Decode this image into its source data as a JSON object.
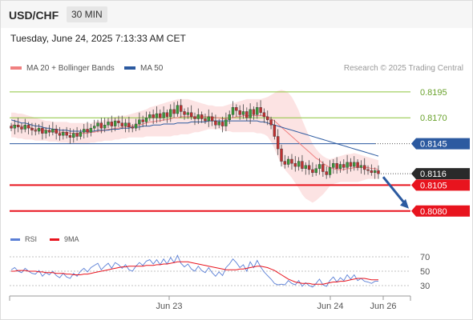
{
  "header": {
    "symbol": "USD/CHF",
    "timeframe": "30 MIN",
    "datetime": "Tuesday, June 24, 2025 7:13:33 AM CET"
  },
  "legend": {
    "bollinger_label": "MA 20 + Bollinger Bands",
    "ma50_label": "MA 50",
    "credit": "Research © 2025 Trading Central"
  },
  "rsi_legend": {
    "rsi_label": "RSI",
    "ma9_label": "9MA"
  },
  "colors": {
    "bollinger": "#f08080",
    "ma50": "#2c5aa0",
    "rsi": "#5a7fd6",
    "ma9": "#e8141e",
    "support": "#e8141e",
    "pivot": "#2c5aa0",
    "resistance": "#8cc43c",
    "arrow": "#2c5aa0",
    "bull_candle": "#3a9a3a",
    "bear_candle": "#c03030"
  },
  "chart_data": [
    {
      "type": "candlestick",
      "y_range": [
        0.8069,
        0.8208
      ],
      "x_tick_labels": [
        "Jun 23",
        "Jun 24",
        "Jun 26"
      ],
      "levels": [
        {
          "kind": "resistance",
          "value": 0.8195,
          "label": "0.8195"
        },
        {
          "kind": "resistance",
          "value": 0.817,
          "label": "0.8170"
        },
        {
          "kind": "pivot",
          "value": 0.8145,
          "label": "0.8145"
        },
        {
          "kind": "last_price",
          "value": 0.8116,
          "label": "0.8116"
        },
        {
          "kind": "support",
          "value": 0.8105,
          "label": "0.8105"
        },
        {
          "kind": "support",
          "value": 0.808,
          "label": "0.8080"
        }
      ],
      "closes": [
        0.816,
        0.8163,
        0.8161,
        0.8159,
        0.8163,
        0.816,
        0.8158,
        0.8157,
        0.816,
        0.8155,
        0.8158,
        0.8156,
        0.8159,
        0.8155,
        0.8153,
        0.8156,
        0.8153,
        0.8151,
        0.8155,
        0.8152,
        0.8156,
        0.8159,
        0.8156,
        0.816,
        0.8162,
        0.8165,
        0.816,
        0.8163,
        0.8166,
        0.8162,
        0.8167,
        0.8165,
        0.8162,
        0.8165,
        0.8161,
        0.816,
        0.8164,
        0.8168,
        0.8166,
        0.817,
        0.8173,
        0.817,
        0.8174,
        0.817,
        0.8175,
        0.8171,
        0.8178,
        0.8174,
        0.8182,
        0.8176,
        0.8173,
        0.8175,
        0.8171,
        0.8169,
        0.8173,
        0.8169,
        0.8167,
        0.8171,
        0.8167,
        0.8163,
        0.8166,
        0.8162,
        0.8168,
        0.8173,
        0.818,
        0.8177,
        0.8173,
        0.8176,
        0.817,
        0.8178,
        0.8173,
        0.818,
        0.8175,
        0.8171,
        0.8168,
        0.8163,
        0.8152,
        0.814,
        0.8128,
        0.8125,
        0.813,
        0.8126,
        0.8123,
        0.8128,
        0.8121,
        0.8124,
        0.812,
        0.8117,
        0.8121,
        0.8125,
        0.8118,
        0.8115,
        0.8122,
        0.8126,
        0.8121,
        0.8125,
        0.8122,
        0.8127,
        0.8123,
        0.8127,
        0.8122,
        0.8124,
        0.812,
        0.8119,
        0.8117,
        0.8119,
        0.8116
      ],
      "ma20": [
        0.8163,
        0.8163,
        0.8162,
        0.8162,
        0.8161,
        0.8161,
        0.816,
        0.8159,
        0.8159,
        0.8158,
        0.8158,
        0.8157,
        0.8157,
        0.8157,
        0.8156,
        0.8156,
        0.8156,
        0.8155,
        0.8155,
        0.8155,
        0.8155,
        0.8155,
        0.8155,
        0.8156,
        0.8156,
        0.8157,
        0.8157,
        0.8158,
        0.8159,
        0.8159,
        0.816,
        0.816,
        0.8161,
        0.8161,
        0.8162,
        0.8162,
        0.8163,
        0.8163,
        0.8164,
        0.8165,
        0.8166,
        0.8166,
        0.8167,
        0.8167,
        0.8168,
        0.8168,
        0.8169,
        0.817,
        0.817,
        0.8171,
        0.8171,
        0.8171,
        0.8171,
        0.8171,
        0.8171,
        0.8171,
        0.8171,
        0.8171,
        0.8171,
        0.817,
        0.817,
        0.8169,
        0.8169,
        0.817,
        0.817,
        0.8171,
        0.8171,
        0.8172,
        0.8172,
        0.8172,
        0.8172,
        0.8172,
        0.8172,
        0.8172,
        0.8171,
        0.8169,
        0.8167,
        0.8164,
        0.8161,
        0.8158,
        0.8155,
        0.8152,
        0.8149,
        0.8146,
        0.8143,
        0.814,
        0.8137,
        0.8134,
        0.8131,
        0.8129,
        0.8126,
        0.8124,
        0.8122,
        0.8121,
        0.812,
        0.812,
        0.812,
        0.8121,
        0.8121,
        0.8122,
        0.8122,
        0.8122,
        0.8122,
        0.8122,
        0.8121,
        0.8121,
        0.812
      ],
      "bb_upper": [
        0.8175,
        0.8175,
        0.8174,
        0.8174,
        0.8173,
        0.8172,
        0.8171,
        0.817,
        0.8169,
        0.8168,
        0.8167,
        0.8167,
        0.8166,
        0.8166,
        0.8166,
        0.8166,
        0.8166,
        0.8165,
        0.8165,
        0.8165,
        0.8165,
        0.8165,
        0.8165,
        0.8165,
        0.8166,
        0.8167,
        0.8167,
        0.8168,
        0.8169,
        0.817,
        0.8171,
        0.8171,
        0.8172,
        0.8172,
        0.8173,
        0.8174,
        0.8175,
        0.8176,
        0.8177,
        0.8178,
        0.818,
        0.8181,
        0.8182,
        0.8183,
        0.8184,
        0.8185,
        0.8186,
        0.8187,
        0.8188,
        0.8188,
        0.8188,
        0.8188,
        0.8187,
        0.8186,
        0.8185,
        0.8184,
        0.8183,
        0.8182,
        0.8182,
        0.8181,
        0.8181,
        0.8181,
        0.8182,
        0.8183,
        0.8184,
        0.8185,
        0.8186,
        0.8187,
        0.8188,
        0.8188,
        0.8188,
        0.8188,
        0.8188,
        0.8189,
        0.819,
        0.8192,
        0.8194,
        0.8196,
        0.8197,
        0.8196,
        0.8194,
        0.819,
        0.8184,
        0.8177,
        0.8168,
        0.816,
        0.8152,
        0.8145,
        0.814,
        0.8136,
        0.8133,
        0.8131,
        0.813,
        0.8131,
        0.8132,
        0.8133,
        0.8134,
        0.8135,
        0.8135,
        0.8136,
        0.8135,
        0.8134,
        0.8133,
        0.8132,
        0.8131,
        0.813,
        0.8129
      ],
      "bb_lower": [
        0.8151,
        0.8151,
        0.815,
        0.815,
        0.8149,
        0.8149,
        0.8149,
        0.8148,
        0.8148,
        0.8148,
        0.8148,
        0.8147,
        0.8147,
        0.8147,
        0.8146,
        0.8146,
        0.8146,
        0.8145,
        0.8145,
        0.8145,
        0.8145,
        0.8145,
        0.8145,
        0.8146,
        0.8146,
        0.8147,
        0.8147,
        0.8148,
        0.8148,
        0.8148,
        0.8149,
        0.8149,
        0.815,
        0.815,
        0.8151,
        0.8151,
        0.8151,
        0.8151,
        0.8151,
        0.8152,
        0.8152,
        0.8152,
        0.8152,
        0.8152,
        0.8152,
        0.8152,
        0.8152,
        0.8153,
        0.8153,
        0.8154,
        0.8154,
        0.8154,
        0.8155,
        0.8156,
        0.8156,
        0.8157,
        0.8158,
        0.8159,
        0.8159,
        0.8159,
        0.8159,
        0.8158,
        0.8157,
        0.8157,
        0.8156,
        0.8156,
        0.8156,
        0.8156,
        0.8156,
        0.8156,
        0.8156,
        0.8155,
        0.8155,
        0.8154,
        0.8152,
        0.8147,
        0.814,
        0.8132,
        0.8125,
        0.812,
        0.8116,
        0.8112,
        0.8107,
        0.8102,
        0.8096,
        0.8092,
        0.809,
        0.8088,
        0.809,
        0.8093,
        0.8096,
        0.81,
        0.8104,
        0.8106,
        0.8107,
        0.8108,
        0.8108,
        0.8108,
        0.8108,
        0.8108,
        0.8108,
        0.8109,
        0.811,
        0.8111,
        0.8111,
        0.8111,
        0.8111
      ],
      "ma50": [
        0.8168,
        0.8167,
        0.8166,
        0.8165,
        0.8165,
        0.8164,
        0.8163,
        0.8162,
        0.8162,
        0.8161,
        0.816,
        0.816,
        0.8159,
        0.8159,
        0.8158,
        0.8158,
        0.8158,
        0.8157,
        0.8157,
        0.8157,
        0.8157,
        0.8157,
        0.8157,
        0.8157,
        0.8157,
        0.8158,
        0.8158,
        0.8158,
        0.8158,
        0.8159,
        0.8159,
        0.8159,
        0.816,
        0.816,
        0.816,
        0.8161,
        0.8161,
        0.8161,
        0.8162,
        0.8162,
        0.8162,
        0.8163,
        0.8163,
        0.8163,
        0.8164,
        0.8164,
        0.8164,
        0.8164,
        0.8165,
        0.8165,
        0.8165,
        0.8165,
        0.8166,
        0.8166,
        0.8166,
        0.8166,
        0.8166,
        0.8167,
        0.8167,
        0.8167,
        0.8167,
        0.8167,
        0.8167,
        0.8167,
        0.8167,
        0.8167,
        0.8167,
        0.8167,
        0.8167,
        0.8167,
        0.8167,
        0.8167,
        0.8166,
        0.8166,
        0.8165,
        0.8164,
        0.8163,
        0.8162,
        0.8161,
        0.816,
        0.8159,
        0.8158,
        0.8157,
        0.8156,
        0.8155,
        0.8154,
        0.8153,
        0.8152,
        0.8151,
        0.815,
        0.8149,
        0.8148,
        0.8147,
        0.8146,
        0.8145,
        0.8144,
        0.8143,
        0.8142,
        0.8141,
        0.814,
        0.8139,
        0.8138,
        0.8137,
        0.8136,
        0.8135,
        0.8134,
        0.8133
      ],
      "projection_target": 0.808
    },
    {
      "type": "line",
      "title": "RSI",
      "y_ticks": [
        30,
        50,
        70
      ],
      "y_range": [
        20,
        80
      ],
      "series": [
        {
          "name": "RSI",
          "values": [
            52,
            55,
            50,
            48,
            54,
            50,
            47,
            46,
            51,
            43,
            48,
            45,
            50,
            44,
            41,
            47,
            42,
            40,
            47,
            43,
            50,
            54,
            49,
            55,
            58,
            61,
            52,
            57,
            61,
            54,
            62,
            59,
            54,
            59,
            52,
            50,
            57,
            62,
            58,
            64,
            66,
            60,
            66,
            59,
            67,
            60,
            69,
            62,
            72,
            61,
            56,
            60,
            53,
            50,
            57,
            51,
            48,
            55,
            48,
            43,
            49,
            44,
            55,
            60,
            67,
            62,
            55,
            59,
            50,
            63,
            55,
            65,
            56,
            49,
            44,
            39,
            33,
            31,
            32,
            31,
            37,
            33,
            31,
            37,
            29,
            34,
            30,
            28,
            33,
            39,
            31,
            29,
            37,
            42,
            35,
            41,
            37,
            45,
            39,
            45,
            37,
            40,
            36,
            35,
            33,
            36,
            36
          ]
        },
        {
          "name": "9MA",
          "values": [
            50,
            50,
            51,
            51,
            51,
            50,
            50,
            50,
            49,
            49,
            48,
            48,
            48,
            47,
            47,
            47,
            46,
            46,
            45,
            45,
            45,
            46,
            46,
            47,
            48,
            49,
            50,
            51,
            52,
            53,
            54,
            55,
            56,
            56,
            57,
            57,
            57,
            57,
            57,
            58,
            58,
            58,
            59,
            59,
            60,
            60,
            61,
            62,
            63,
            63,
            63,
            63,
            62,
            61,
            60,
            59,
            58,
            57,
            56,
            55,
            54,
            53,
            52,
            52,
            52,
            52,
            53,
            53,
            54,
            55,
            56,
            57,
            57,
            56,
            55,
            53,
            51,
            48,
            45,
            42,
            39,
            37,
            35,
            34,
            33,
            33,
            33,
            32,
            32,
            32,
            32,
            33,
            34,
            35,
            35,
            36,
            36,
            37,
            38,
            39,
            40,
            40,
            40,
            39,
            38,
            38,
            38
          ]
        }
      ]
    }
  ]
}
